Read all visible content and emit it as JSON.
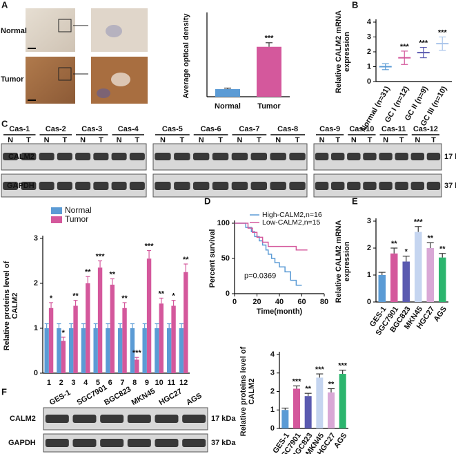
{
  "panels": [
    "A",
    "B",
    "C",
    "D",
    "E",
    "F"
  ],
  "histology": {
    "rows": [
      "Normal",
      "Tumor"
    ]
  },
  "blots": {
    "C": {
      "cases": [
        "Cas-1",
        "Cas-2",
        "Cas-3",
        "Cas-4",
        "Cas-5",
        "Cas-6",
        "Cas-7",
        "Cas-8",
        "Cas-9",
        "Cas-10",
        "Cas-11",
        "Cas-12"
      ],
      "lanes": [
        "N",
        "T"
      ],
      "rows": [
        "CALM2",
        "GAPDH"
      ],
      "sizes": [
        "17 kDa",
        "37 kDa"
      ]
    },
    "F": {
      "lanes": [
        "GES-1",
        "SGC7901",
        "BGC823",
        "MKN45",
        "HGC27",
        "AGS"
      ],
      "rows": [
        "CALM2",
        "GAPDH"
      ],
      "sizes": [
        "17 kDa",
        "37 kDa"
      ]
    }
  },
  "chart_data": [
    {
      "type": "bar",
      "ylabel": [
        "Average optical density"
      ],
      "categories": [
        "Normal",
        "Tumor"
      ],
      "values": [
        15,
        98
      ],
      "errors": [
        2,
        8
      ],
      "colors": [
        "#5b9bd5",
        "#d4589c"
      ],
      "annotations": [
        null,
        "***"
      ],
      "ylim": [
        0,
        160
      ]
    },
    {
      "type": "dot",
      "ylabel": [
        "Relative CALM2 mRNA",
        "expression"
      ],
      "categories": [
        "Normal (n=31)",
        "GC I (n=12)",
        "GC II (n=9)",
        "GC III (n=10)"
      ],
      "values": [
        1.0,
        1.6,
        1.95,
        2.55
      ],
      "errors": [
        0.2,
        0.45,
        0.35,
        0.45
      ],
      "colors": [
        "#5b9bd5",
        "#d4589c",
        "#5a5ab0",
        "#a9c4ea"
      ],
      "annotations": [
        null,
        "***",
        "***",
        "***"
      ],
      "ylim": [
        0,
        4
      ],
      "yticks": [
        0,
        1,
        2,
        3,
        4
      ]
    },
    {
      "type": "bar",
      "ylabel": [
        "Relative proteins level of",
        "CALM2"
      ],
      "categories": [
        "1",
        "2",
        "3",
        "4",
        "5",
        "6",
        "7",
        "8",
        "9",
        "10",
        "11",
        "12"
      ],
      "series": [
        {
          "name": "Normal",
          "color": "#5b9bd5",
          "values": [
            1,
            1,
            1,
            1,
            1,
            1,
            1,
            1,
            1,
            1,
            1,
            1
          ],
          "errors": [
            0.1,
            0.1,
            0.1,
            0.1,
            0.1,
            0.1,
            0.1,
            0.1,
            0.1,
            0.1,
            0.1,
            0.1
          ]
        },
        {
          "name": "Tumor",
          "color": "#d4589c",
          "values": [
            1.45,
            0.72,
            1.5,
            2.0,
            2.35,
            1.97,
            1.45,
            0.3,
            2.55,
            1.55,
            1.5,
            2.25
          ],
          "errors": [
            0.12,
            0.08,
            0.12,
            0.15,
            0.15,
            0.13,
            0.12,
            0.05,
            0.18,
            0.12,
            0.12,
            0.18
          ],
          "annotations": [
            "*",
            "*",
            "**",
            "**",
            "***",
            "**",
            "**",
            "***",
            "***",
            "**",
            "*",
            "**"
          ]
        }
      ],
      "legend": "upper left",
      "ylim": [
        0,
        3
      ],
      "yticks": [
        0,
        1,
        2,
        3
      ]
    },
    {
      "type": "line",
      "ylabel": [
        "Percent survival"
      ],
      "xlabel": "Time(month)",
      "annotation": "p=0.0369",
      "series": [
        {
          "name": "High-CALM2,n=16",
          "color": "#5b9bd5",
          "x": [
            0,
            10,
            15,
            18,
            22,
            25,
            28,
            30,
            33,
            36,
            40,
            45,
            50,
            55,
            60
          ],
          "values": [
            100,
            94,
            88,
            81,
            75,
            69,
            62,
            56,
            50,
            44,
            38,
            31,
            19,
            12,
            12
          ]
        },
        {
          "name": "Low-CALM2,n=15",
          "color": "#d4589c",
          "x": [
            0,
            12,
            16,
            20,
            25,
            30,
            35,
            45,
            55,
            60,
            65
          ],
          "values": [
            100,
            93,
            87,
            80,
            73,
            67,
            67,
            67,
            62,
            62,
            62
          ]
        }
      ],
      "legend": "upper right",
      "xlim": [
        0,
        80
      ],
      "xticks": [
        0,
        20,
        40,
        60,
        80
      ],
      "ylim": [
        0,
        100
      ],
      "yticks": [
        0,
        50,
        100
      ]
    },
    {
      "type": "bar",
      "ylabel": [
        "Relative CALM2 mRNA",
        "expression"
      ],
      "categories": [
        "GES-1",
        "SGC7901",
        "BGC823",
        "MKN45",
        "HGC27",
        "AGS"
      ],
      "values": [
        1.0,
        1.8,
        1.5,
        2.6,
        2.0,
        1.65
      ],
      "errors": [
        0.1,
        0.2,
        0.2,
        0.2,
        0.2,
        0.15
      ],
      "colors": [
        "#5b9bd5",
        "#d4589c",
        "#5a5ab0",
        "#c5d5f0",
        "#d9a8d6",
        "#2cb56e"
      ],
      "annotations": [
        null,
        "**",
        "*",
        "***",
        "**",
        "**"
      ],
      "ylim": [
        0,
        3
      ],
      "yticks": [
        0,
        1,
        2,
        3
      ]
    },
    {
      "type": "bar",
      "ylabel": [
        "Relative proteins level of",
        "CALM2"
      ],
      "categories": [
        "GES-1",
        "SGC7901",
        "BGC823",
        "MKN45",
        "HGC27",
        "AGS"
      ],
      "values": [
        1.0,
        2.15,
        1.75,
        2.75,
        1.95,
        2.95
      ],
      "errors": [
        0.1,
        0.15,
        0.15,
        0.2,
        0.2,
        0.2
      ],
      "colors": [
        "#5b9bd5",
        "#d4589c",
        "#5a5ab0",
        "#c5d5f0",
        "#d9a8d6",
        "#2cb56e"
      ],
      "annotations": [
        null,
        "***",
        "**",
        "***",
        "**",
        "***"
      ],
      "ylim": [
        0,
        4
      ],
      "yticks": [
        0,
        1,
        2,
        3,
        4
      ]
    }
  ]
}
